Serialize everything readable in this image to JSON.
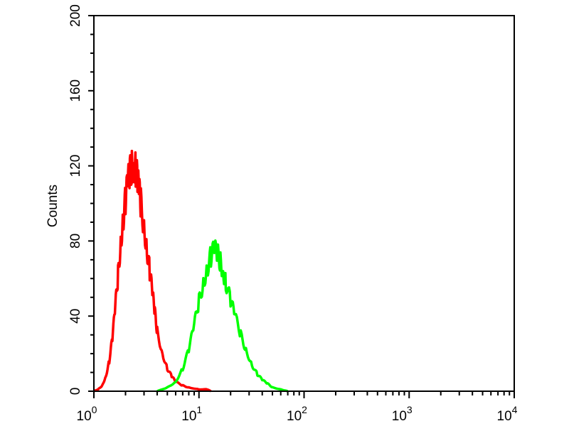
{
  "chart_data": {
    "type": "line",
    "title": "",
    "xlabel": "",
    "ylabel": "Counts",
    "x_scale": "log",
    "xlim": [
      1,
      10000
    ],
    "ylim": [
      0,
      200
    ],
    "x_tick_labels": [
      {
        "base": "10",
        "exp": "0"
      },
      {
        "base": "10",
        "exp": "1"
      },
      {
        "base": "10",
        "exp": "2"
      },
      {
        "base": "10",
        "exp": "3"
      },
      {
        "base": "10",
        "exp": "4"
      }
    ],
    "y_ticks": [
      "0",
      "40",
      "80",
      "120",
      "160",
      "200"
    ],
    "grid": false,
    "legend": "none",
    "series": [
      {
        "color": "#ff0000",
        "x": [
          1.0,
          1.1,
          1.2,
          1.3,
          1.4,
          1.5,
          1.6,
          1.7,
          1.8,
          1.9,
          2.0,
          2.1,
          2.2,
          2.3,
          2.4,
          2.5,
          2.6,
          2.7,
          2.8,
          3.0,
          3.2,
          3.4,
          3.6,
          3.8,
          4.0,
          4.5,
          5.0,
          5.5,
          6.0,
          7.0,
          8.0,
          10.0,
          12.0,
          13.0
        ],
        "y": [
          0,
          1,
          3,
          8,
          16,
          28,
          45,
          62,
          80,
          92,
          102,
          110,
          116,
          120,
          122,
          118,
          112,
          106,
          100,
          88,
          76,
          64,
          52,
          42,
          32,
          20,
          12,
          8,
          5,
          3,
          2,
          1,
          1,
          0
        ]
      },
      {
        "color": "#00ff00",
        "x": [
          4,
          5,
          6,
          7,
          8,
          9,
          10,
          11,
          12,
          13,
          14,
          15,
          16,
          17,
          18,
          20,
          22,
          25,
          28,
          32,
          36,
          40,
          45,
          50,
          60,
          70
        ],
        "y": [
          0,
          2,
          5,
          12,
          22,
          35,
          48,
          58,
          66,
          72,
          75,
          73,
          69,
          64,
          58,
          48,
          40,
          30,
          22,
          14,
          9,
          6,
          4,
          2,
          1,
          0
        ]
      }
    ]
  }
}
